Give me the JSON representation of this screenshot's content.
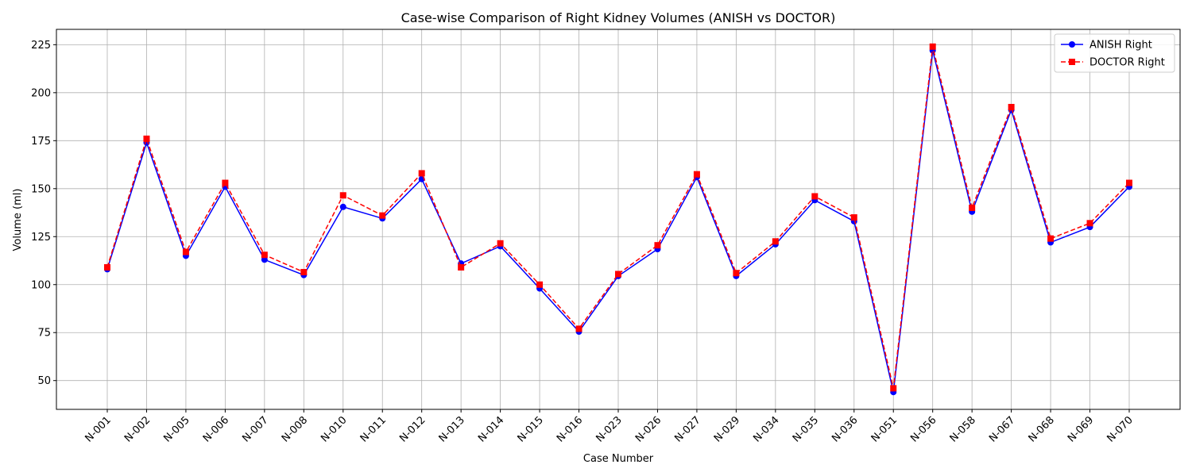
{
  "chart_data": {
    "type": "line",
    "title": "Case-wise Comparison of Right Kidney Volumes (ANISH vs DOCTOR)",
    "xlabel": "Case Number",
    "ylabel": "Volume (ml)",
    "ylim": [
      35,
      233
    ],
    "yticks": [
      50,
      75,
      100,
      125,
      150,
      175,
      200,
      225
    ],
    "grid": true,
    "legend_position": "top-right",
    "categories": [
      "N-001",
      "N-002",
      "N-005",
      "N-006",
      "N-007",
      "N-008",
      "N-010",
      "N-011",
      "N-012",
      "N-013",
      "N-014",
      "N-015",
      "N-016",
      "N-023",
      "N-026",
      "N-027",
      "N-029",
      "N-034",
      "N-035",
      "N-036",
      "N-051",
      "N-056",
      "N-058",
      "N-067",
      "N-068",
      "N-069",
      "N-070"
    ],
    "series": [
      {
        "name": "ANISH Right",
        "color": "#0000ff",
        "marker": "circle",
        "linestyle": "solid",
        "values": [
          108,
          174,
          115,
          151,
          113,
          105,
          140.5,
          134.5,
          155,
          111,
          120,
          98,
          75.5,
          104.5,
          118.5,
          156,
          104.5,
          121,
          144,
          133,
          44,
          222,
          138,
          191,
          122,
          130,
          151
        ]
      },
      {
        "name": "DOCTOR Right",
        "color": "#ff0000",
        "marker": "square",
        "linestyle": "dashed",
        "values": [
          109,
          176,
          117,
          153,
          115.5,
          106.5,
          146.5,
          136,
          158,
          109,
          121.5,
          100,
          77,
          105.5,
          120.5,
          157.5,
          106,
          122.5,
          146,
          135,
          46,
          224,
          140,
          192.5,
          124,
          132,
          153
        ]
      }
    ]
  }
}
